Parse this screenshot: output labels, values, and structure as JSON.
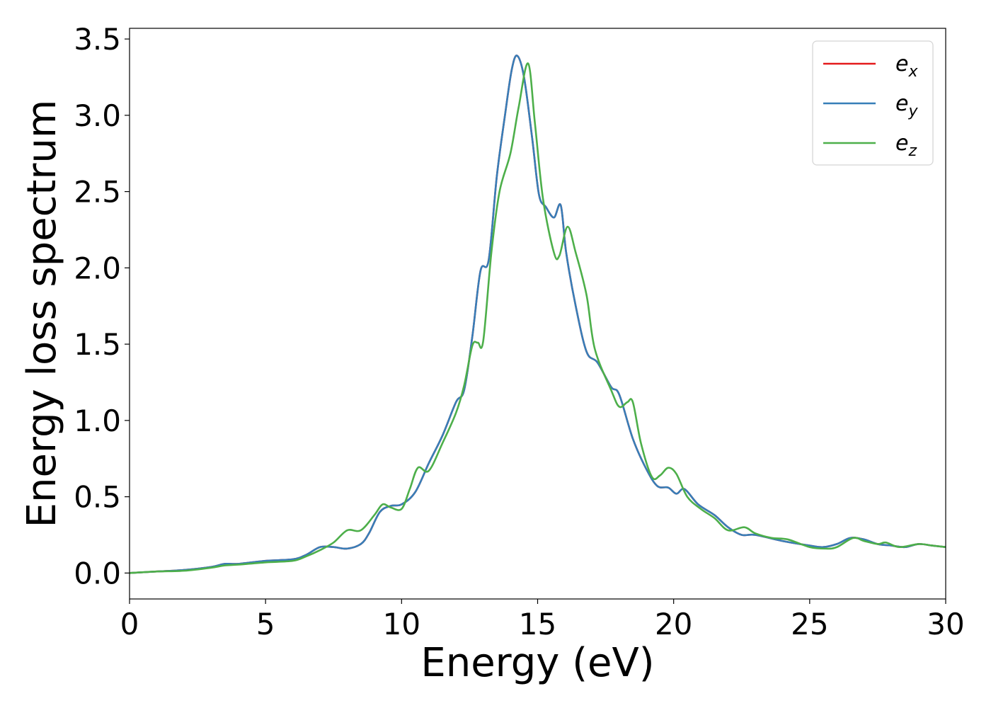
{
  "chart_data": {
    "type": "line",
    "xlabel": "Energy (eV)",
    "ylabel": "Energy loss spectrum",
    "xlim": [
      0,
      30
    ],
    "ylim": [
      -0.17,
      3.57
    ],
    "x_ticks": [
      "0",
      "5",
      "10",
      "15",
      "20",
      "25",
      "30"
    ],
    "y_ticks": [
      "0.0",
      "0.5",
      "1.0",
      "1.5",
      "2.0",
      "2.5",
      "3.0",
      "3.5"
    ],
    "grid": false,
    "legend_position": "top-right",
    "series": [
      {
        "name": "e_x",
        "legend_main": "e",
        "legend_sub": "x",
        "color": "#e41a1c",
        "points": [
          [
            0,
            0
          ],
          [
            1,
            0.01
          ],
          [
            2,
            0.02
          ],
          [
            3,
            0.04
          ],
          [
            3.5,
            0.06
          ],
          [
            4,
            0.06
          ],
          [
            5,
            0.08
          ],
          [
            6,
            0.09
          ],
          [
            6.5,
            0.12
          ],
          [
            7,
            0.17
          ],
          [
            7.5,
            0.17
          ],
          [
            8,
            0.16
          ],
          [
            8.5,
            0.19
          ],
          [
            8.8,
            0.26
          ],
          [
            9.2,
            0.4
          ],
          [
            9.6,
            0.44
          ],
          [
            10,
            0.45
          ],
          [
            10.5,
            0.53
          ],
          [
            11,
            0.72
          ],
          [
            11.5,
            0.9
          ],
          [
            12,
            1.12
          ],
          [
            12.3,
            1.2
          ],
          [
            12.6,
            1.55
          ],
          [
            12.9,
            1.98
          ],
          [
            13.2,
            2.05
          ],
          [
            13.5,
            2.6
          ],
          [
            13.8,
            3.0
          ],
          [
            14.05,
            3.3
          ],
          [
            14.25,
            3.39
          ],
          [
            14.5,
            3.25
          ],
          [
            14.8,
            2.85
          ],
          [
            15.05,
            2.48
          ],
          [
            15.3,
            2.4
          ],
          [
            15.6,
            2.33
          ],
          [
            15.85,
            2.41
          ],
          [
            16.05,
            2.1
          ],
          [
            16.4,
            1.75
          ],
          [
            16.8,
            1.45
          ],
          [
            17.2,
            1.38
          ],
          [
            17.7,
            1.22
          ],
          [
            18,
            1.17
          ],
          [
            18.5,
            0.88
          ],
          [
            19,
            0.68
          ],
          [
            19.4,
            0.57
          ],
          [
            19.8,
            0.56
          ],
          [
            20.1,
            0.52
          ],
          [
            20.4,
            0.55
          ],
          [
            20.9,
            0.45
          ],
          [
            21.5,
            0.38
          ],
          [
            22,
            0.3
          ],
          [
            22.5,
            0.25
          ],
          [
            23,
            0.25
          ],
          [
            24,
            0.21
          ],
          [
            25,
            0.18
          ],
          [
            25.5,
            0.17
          ],
          [
            26,
            0.19
          ],
          [
            26.5,
            0.23
          ],
          [
            27,
            0.22
          ],
          [
            27.5,
            0.19
          ],
          [
            28,
            0.18
          ],
          [
            28.5,
            0.17
          ],
          [
            29,
            0.19
          ],
          [
            29.5,
            0.18
          ],
          [
            30,
            0.17
          ]
        ]
      },
      {
        "name": "e_y",
        "legend_main": "e",
        "legend_sub": "y",
        "color": "#377eb8",
        "points": [
          [
            0,
            0
          ],
          [
            1,
            0.01
          ],
          [
            2,
            0.02
          ],
          [
            3,
            0.04
          ],
          [
            3.5,
            0.06
          ],
          [
            4,
            0.06
          ],
          [
            5,
            0.08
          ],
          [
            6,
            0.09
          ],
          [
            6.5,
            0.12
          ],
          [
            7,
            0.17
          ],
          [
            7.5,
            0.17
          ],
          [
            8,
            0.16
          ],
          [
            8.5,
            0.19
          ],
          [
            8.8,
            0.26
          ],
          [
            9.2,
            0.4
          ],
          [
            9.6,
            0.44
          ],
          [
            10,
            0.45
          ],
          [
            10.5,
            0.53
          ],
          [
            11,
            0.72
          ],
          [
            11.5,
            0.9
          ],
          [
            12,
            1.12
          ],
          [
            12.3,
            1.2
          ],
          [
            12.6,
            1.55
          ],
          [
            12.9,
            1.98
          ],
          [
            13.2,
            2.05
          ],
          [
            13.5,
            2.6
          ],
          [
            13.8,
            3.0
          ],
          [
            14.05,
            3.3
          ],
          [
            14.25,
            3.39
          ],
          [
            14.5,
            3.25
          ],
          [
            14.8,
            2.85
          ],
          [
            15.05,
            2.48
          ],
          [
            15.3,
            2.4
          ],
          [
            15.6,
            2.33
          ],
          [
            15.85,
            2.41
          ],
          [
            16.05,
            2.1
          ],
          [
            16.4,
            1.75
          ],
          [
            16.8,
            1.45
          ],
          [
            17.2,
            1.38
          ],
          [
            17.7,
            1.22
          ],
          [
            18,
            1.17
          ],
          [
            18.5,
            0.88
          ],
          [
            19,
            0.68
          ],
          [
            19.4,
            0.57
          ],
          [
            19.8,
            0.56
          ],
          [
            20.1,
            0.52
          ],
          [
            20.4,
            0.55
          ],
          [
            20.9,
            0.45
          ],
          [
            21.5,
            0.38
          ],
          [
            22,
            0.3
          ],
          [
            22.5,
            0.25
          ],
          [
            23,
            0.25
          ],
          [
            24,
            0.21
          ],
          [
            25,
            0.18
          ],
          [
            25.5,
            0.17
          ],
          [
            26,
            0.19
          ],
          [
            26.5,
            0.23
          ],
          [
            27,
            0.22
          ],
          [
            27.5,
            0.19
          ],
          [
            28,
            0.18
          ],
          [
            28.5,
            0.17
          ],
          [
            29,
            0.19
          ],
          [
            29.5,
            0.18
          ],
          [
            30,
            0.17
          ]
        ]
      },
      {
        "name": "e_z",
        "legend_main": "e",
        "legend_sub": "z",
        "color": "#4daf4a",
        "points": [
          [
            0,
            0
          ],
          [
            1,
            0.01
          ],
          [
            2,
            0.015
          ],
          [
            3,
            0.035
          ],
          [
            3.5,
            0.05
          ],
          [
            4,
            0.055
          ],
          [
            5,
            0.07
          ],
          [
            6,
            0.08
          ],
          [
            6.5,
            0.11
          ],
          [
            7,
            0.15
          ],
          [
            7.5,
            0.2
          ],
          [
            8,
            0.28
          ],
          [
            8.5,
            0.28
          ],
          [
            9,
            0.38
          ],
          [
            9.3,
            0.45
          ],
          [
            9.6,
            0.43
          ],
          [
            10,
            0.42
          ],
          [
            10.3,
            0.55
          ],
          [
            10.6,
            0.69
          ],
          [
            11,
            0.67
          ],
          [
            11.5,
            0.85
          ],
          [
            12,
            1.05
          ],
          [
            12.3,
            1.23
          ],
          [
            12.6,
            1.49
          ],
          [
            12.8,
            1.51
          ],
          [
            13.0,
            1.52
          ],
          [
            13.3,
            2.1
          ],
          [
            13.6,
            2.5
          ],
          [
            14.0,
            2.75
          ],
          [
            14.3,
            3.05
          ],
          [
            14.65,
            3.34
          ],
          [
            14.9,
            2.95
          ],
          [
            15.2,
            2.45
          ],
          [
            15.6,
            2.1
          ],
          [
            15.8,
            2.08
          ],
          [
            16.1,
            2.27
          ],
          [
            16.4,
            2.1
          ],
          [
            16.8,
            1.82
          ],
          [
            17.1,
            1.47
          ],
          [
            17.7,
            1.2
          ],
          [
            18,
            1.09
          ],
          [
            18.3,
            1.12
          ],
          [
            18.5,
            1.12
          ],
          [
            18.8,
            0.85
          ],
          [
            19.2,
            0.63
          ],
          [
            19.5,
            0.64
          ],
          [
            19.8,
            0.69
          ],
          [
            20.1,
            0.65
          ],
          [
            20.5,
            0.5
          ],
          [
            21,
            0.42
          ],
          [
            21.5,
            0.36
          ],
          [
            22,
            0.28
          ],
          [
            22.6,
            0.3
          ],
          [
            23,
            0.26
          ],
          [
            23.6,
            0.23
          ],
          [
            24.2,
            0.22
          ],
          [
            25,
            0.17
          ],
          [
            25.6,
            0.16
          ],
          [
            26,
            0.17
          ],
          [
            26.6,
            0.23
          ],
          [
            27,
            0.21
          ],
          [
            27.5,
            0.19
          ],
          [
            27.8,
            0.2
          ],
          [
            28.3,
            0.17
          ],
          [
            29,
            0.19
          ],
          [
            29.5,
            0.18
          ],
          [
            30,
            0.17
          ]
        ]
      }
    ]
  }
}
